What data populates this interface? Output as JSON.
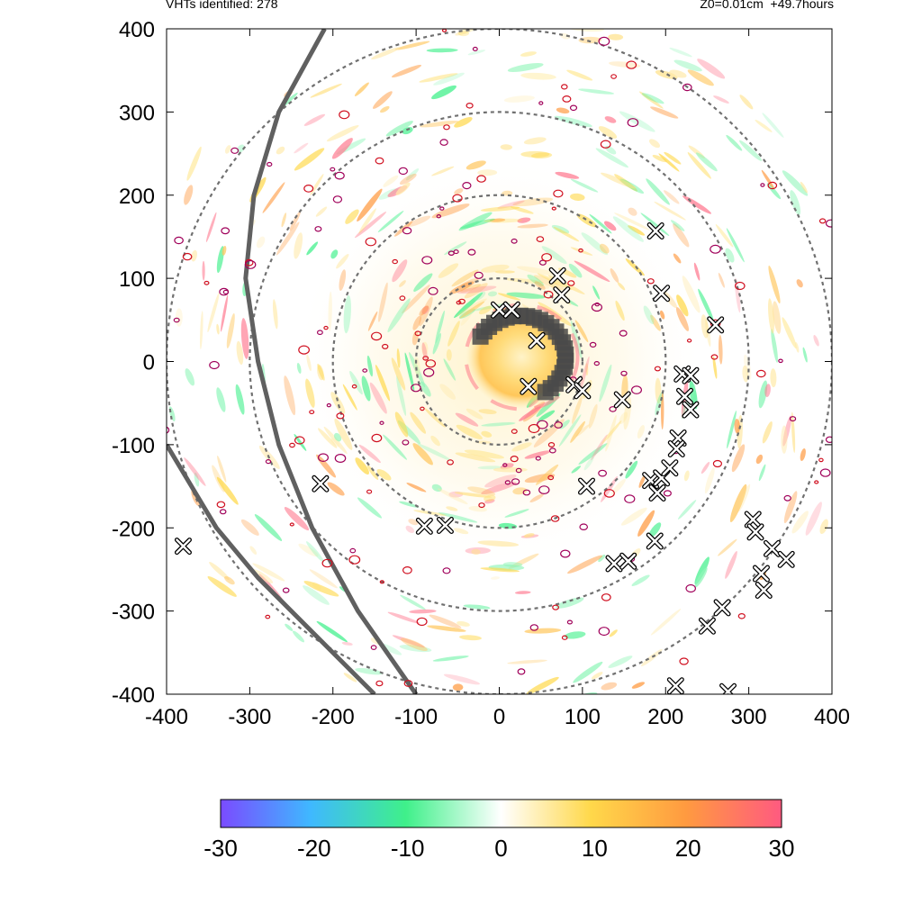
{
  "header": {
    "vht_label": "VHTs identified: 278",
    "run_label": "Z0=0.01cm  +49.7hours"
  },
  "chart_data": {
    "type": "scatter",
    "title": "",
    "xlabel": "",
    "ylabel": "",
    "xlim": [
      -400,
      400
    ],
    "ylim": [
      -400,
      400
    ],
    "x_ticks": [
      "-400",
      "-300",
      "-200",
      "-100",
      "0",
      "100",
      "200",
      "300",
      "400"
    ],
    "y_ticks": [
      "400",
      "300",
      "200",
      "100",
      "0",
      "-100",
      "-200",
      "-300",
      "-400"
    ],
    "range_rings_radius": [
      100,
      200,
      300,
      400
    ],
    "colorbar": {
      "ticks": [
        "-30",
        "-20",
        "-10",
        "0",
        "10",
        "20",
        "30"
      ],
      "range": [
        -30,
        30
      ],
      "colors": [
        "#7a4bff",
        "#3fb8ff",
        "#3ff08a",
        "#ffffff",
        "#ffd84a",
        "#ff9a40",
        "#ff5a80"
      ]
    },
    "vht_markers": [
      {
        "x": 70,
        "y": 103
      },
      {
        "x": 75,
        "y": 80
      },
      {
        "x": 0,
        "y": 62
      },
      {
        "x": 15,
        "y": 62
      },
      {
        "x": 45,
        "y": 25
      },
      {
        "x": 35,
        "y": -30
      },
      {
        "x": 90,
        "y": -28
      },
      {
        "x": 100,
        "y": -35
      },
      {
        "x": 148,
        "y": -46
      },
      {
        "x": 188,
        "y": 157
      },
      {
        "x": 195,
        "y": 82
      },
      {
        "x": 260,
        "y": 44
      },
      {
        "x": 220,
        "y": -15
      },
      {
        "x": 230,
        "y": -17
      },
      {
        "x": 223,
        "y": -42
      },
      {
        "x": 230,
        "y": -58
      },
      {
        "x": 215,
        "y": -92
      },
      {
        "x": 213,
        "y": -105
      },
      {
        "x": 182,
        "y": -143
      },
      {
        "x": 195,
        "y": -140
      },
      {
        "x": 205,
        "y": -128
      },
      {
        "x": 190,
        "y": -158
      },
      {
        "x": 105,
        "y": -150
      },
      {
        "x": -215,
        "y": -147
      },
      {
        "x": -90,
        "y": -198
      },
      {
        "x": -65,
        "y": -197
      },
      {
        "x": -380,
        "y": -222
      },
      {
        "x": 187,
        "y": -216
      },
      {
        "x": 138,
        "y": -243
      },
      {
        "x": 155,
        "y": -240
      },
      {
        "x": 305,
        "y": -190
      },
      {
        "x": 308,
        "y": -205
      },
      {
        "x": 328,
        "y": -225
      },
      {
        "x": 345,
        "y": -238
      },
      {
        "x": 315,
        "y": -255
      },
      {
        "x": 318,
        "y": -275
      },
      {
        "x": 268,
        "y": -296
      },
      {
        "x": 250,
        "y": -318
      },
      {
        "x": 212,
        "y": -390
      },
      {
        "x": 275,
        "y": -397
      }
    ],
    "trajectory_lines": [
      {
        "points": [
          [
            -210,
            400
          ],
          [
            -265,
            300
          ],
          [
            -295,
            200
          ],
          [
            -305,
            100
          ],
          [
            -290,
            0
          ],
          [
            -265,
            -100
          ],
          [
            -225,
            -200
          ],
          [
            -170,
            -300
          ],
          [
            -100,
            -400
          ]
        ]
      },
      {
        "points": [
          [
            -400,
            -100
          ],
          [
            -370,
            -150
          ],
          [
            -340,
            -200
          ],
          [
            -290,
            -260
          ],
          [
            -230,
            -320
          ],
          [
            -150,
            -400
          ]
        ]
      }
    ],
    "eyewall_cluster": {
      "note": "dense VHT markers along northern and eastern eyewall"
    }
  }
}
